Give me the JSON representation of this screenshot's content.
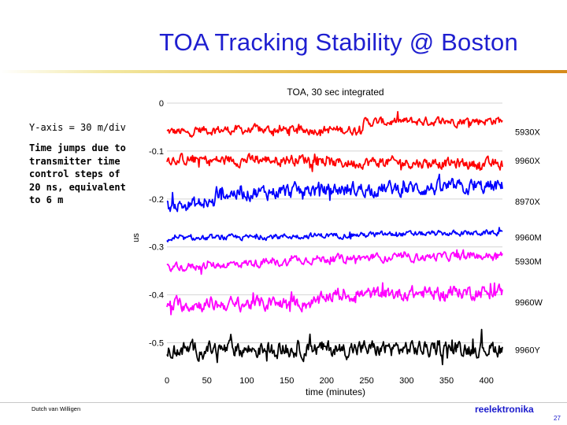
{
  "slide": {
    "title": "TOA Tracking Stability @ Boston",
    "note_yaxis": "Y-axis = 30 m/div",
    "note_time": "Time jumps due to transmitter time control steps of 20 ns, equivalent to 6 m",
    "author": "Dutch van Willigen",
    "brand": "reelektronika",
    "page_number": "27"
  },
  "chart_data": {
    "type": "line",
    "title": "TOA, 30 sec integrated",
    "xlabel": "time (minutes)",
    "ylabel": "us",
    "xlim": [
      0,
      420
    ],
    "ylim": [
      -0.55,
      0.0
    ],
    "x_ticks": [
      0,
      50,
      100,
      150,
      200,
      250,
      300,
      350,
      400
    ],
    "y_ticks": [
      0,
      -0.1,
      -0.2,
      -0.3,
      -0.4,
      -0.5
    ],
    "y_tick_labels": [
      "0",
      "-0.1",
      "-0.2",
      "-0.3",
      "-0.4",
      "-0.5"
    ],
    "series": [
      {
        "name": "5930X",
        "color": "#ff0000",
        "base": -0.06,
        "noise": 0.01,
        "trend": [
          [
            0,
            0.0
          ],
          [
            20,
            0.0
          ],
          [
            25,
            -0.006
          ],
          [
            35,
            0.004
          ],
          [
            242,
            0.004
          ],
          [
            247,
            0.02
          ],
          [
            420,
            0.024
          ]
        ]
      },
      {
        "name": "9960X",
        "color": "#ff0000",
        "base": -0.12,
        "noise": 0.012,
        "trend": [
          [
            0,
            0.004
          ],
          [
            60,
            0.0
          ],
          [
            195,
            0.004
          ],
          [
            200,
            -0.006
          ],
          [
            260,
            -0.003
          ],
          [
            420,
            -0.008
          ]
        ]
      },
      {
        "name": "8970X",
        "color": "#0000ff",
        "base": -0.205,
        "noise": 0.016,
        "trend": [
          [
            0,
            -0.01
          ],
          [
            60,
            -0.004
          ],
          [
            62,
            0.016
          ],
          [
            140,
            0.02
          ],
          [
            190,
            0.024
          ],
          [
            420,
            0.03
          ]
        ]
      },
      {
        "name": "9960M",
        "color": "#0000ff",
        "base": -0.28,
        "noise": 0.006,
        "trend": [
          [
            0,
            -0.004
          ],
          [
            100,
            0.0
          ],
          [
            200,
            0.004
          ],
          [
            420,
            0.01
          ]
        ]
      },
      {
        "name": "5930M",
        "color": "#ff00ff",
        "base": -0.33,
        "noise": 0.009,
        "trend": [
          [
            0,
            -0.014
          ],
          [
            100,
            -0.004
          ],
          [
            150,
            -0.002
          ],
          [
            160,
            0.004
          ],
          [
            420,
            0.012
          ]
        ]
      },
      {
        "name": "9960W",
        "color": "#ff00ff",
        "base": -0.415,
        "noise": 0.015,
        "trend": [
          [
            0,
            -0.006
          ],
          [
            190,
            -0.002
          ],
          [
            200,
            0.014
          ],
          [
            420,
            0.022
          ]
        ]
      },
      {
        "name": "9960Y",
        "color": "#000000",
        "base": -0.515,
        "noise": 0.018,
        "trend": [
          [
            0,
            0.0
          ],
          [
            420,
            0.004
          ]
        ]
      }
    ]
  }
}
